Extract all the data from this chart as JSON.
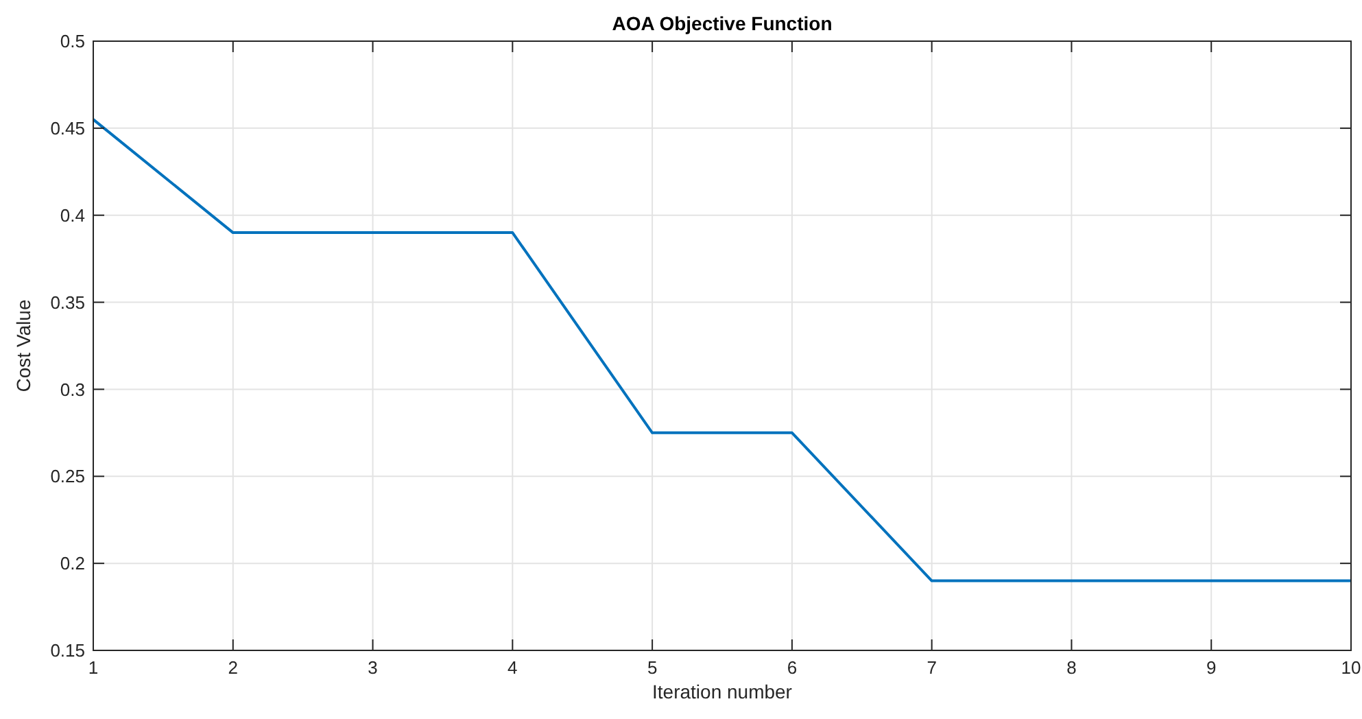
{
  "chart_data": {
    "type": "line",
    "title": "AOA Objective Function",
    "xlabel": "Iteration number",
    "ylabel": "Cost Value",
    "x": [
      1,
      2,
      3,
      4,
      5,
      6,
      7,
      8,
      9,
      10
    ],
    "series": [
      {
        "color": "#0072bd",
        "values": [
          0.455,
          0.39,
          0.39,
          0.39,
          0.275,
          0.275,
          0.19,
          0.19,
          0.19,
          0.19
        ]
      }
    ],
    "xlim": [
      1,
      10
    ],
    "xticks": [
      1,
      2,
      3,
      4,
      5,
      6,
      7,
      8,
      9,
      10
    ],
    "ylim": [
      0.15,
      0.5
    ],
    "yticks": [
      0.15,
      0.2,
      0.25,
      0.3,
      0.35,
      0.4,
      0.45,
      0.5
    ],
    "grid": true,
    "marker": "none",
    "line_style": "solid"
  }
}
